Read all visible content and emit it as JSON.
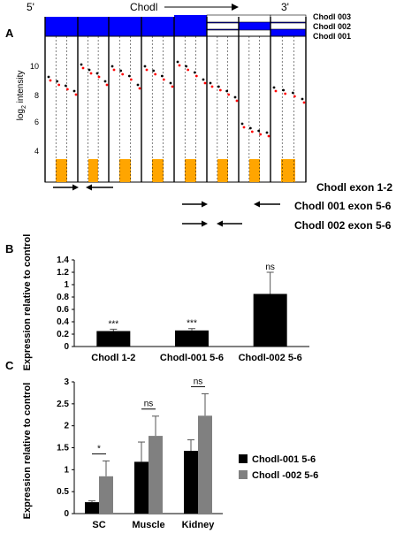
{
  "figure": {
    "panel_labels": [
      "A",
      "B",
      "C"
    ]
  },
  "panel_a": {
    "gene_label": "Chodl",
    "five_prime": "5'",
    "three_prime": "3'",
    "transcripts": [
      "Chodl 003",
      "Chodl 002",
      "Chodl 001"
    ],
    "ylabel_main": "log",
    "ylabel_sub": "2",
    "ylabel_rest": " intensity",
    "yticks": [
      4,
      6,
      8,
      10
    ],
    "primer_labels": [
      "Chodl exon 1-2",
      "Chodl 001 exon 5-6",
      "Chodl 002 exon 5-6"
    ],
    "colors": {
      "blue": "#0000ff",
      "orange": "#ffa500",
      "red": "#ff0000",
      "black": "#000000"
    }
  },
  "chart_data": [
    {
      "type": "bar",
      "panel": "B",
      "categories": [
        "Chodl 1-2",
        "Chodl-001 5-6",
        "Chodl-002 5-6"
      ],
      "values": [
        0.25,
        0.26,
        0.85
      ],
      "errors": [
        0.03,
        0.03,
        0.35
      ],
      "significance": [
        "***",
        "***",
        "ns"
      ],
      "ylabel": "Expression relative to control",
      "ylim": [
        0,
        1.4
      ],
      "yticks": [
        0,
        0.2,
        0.4,
        0.6,
        0.8,
        1,
        1.2,
        1.4
      ],
      "color": "#000000"
    },
    {
      "type": "bar",
      "panel": "C",
      "categories": [
        "SC",
        "Muscle",
        "Kidney"
      ],
      "series": [
        {
          "name": "Chodl-001 5-6",
          "values": [
            0.26,
            1.18,
            1.43
          ],
          "errors": [
            0.03,
            0.45,
            0.25
          ],
          "color": "#000000"
        },
        {
          "name": "Chodl -002 5-6",
          "values": [
            0.85,
            1.77,
            2.23
          ],
          "errors": [
            0.35,
            0.45,
            0.5
          ],
          "color": "#808080"
        }
      ],
      "significance": [
        "*",
        "ns",
        "ns"
      ],
      "ylabel": "Expression relative to control",
      "ylim": [
        0,
        3
      ],
      "yticks": [
        0,
        0.5,
        1,
        1.5,
        2,
        2.5,
        3
      ],
      "legend": "right"
    }
  ]
}
